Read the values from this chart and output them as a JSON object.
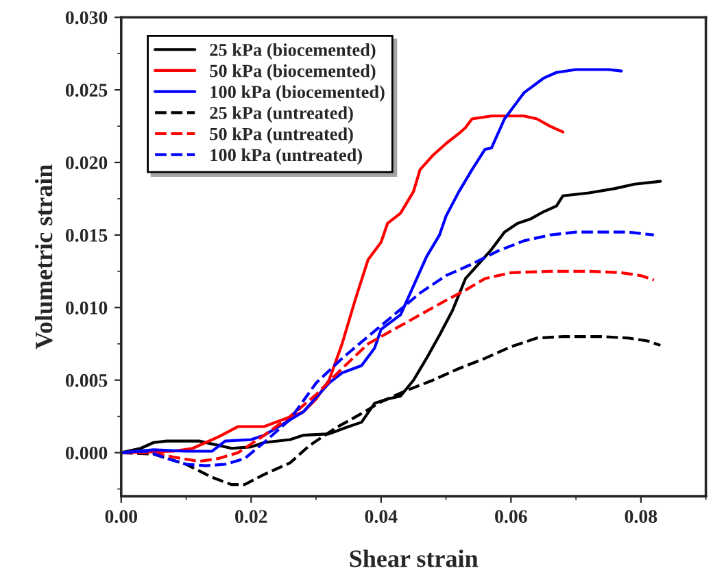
{
  "chart_data": {
    "type": "line",
    "xlabel": "Shear strain",
    "ylabel": "Volumetric strain",
    "xlim": [
      0,
      0.09
    ],
    "ylim": [
      -0.003,
      0.03
    ],
    "xticks": [
      {
        "value": 0,
        "label": "0.00"
      },
      {
        "value": 0.02,
        "label": "0.02"
      },
      {
        "value": 0.04,
        "label": "0.04"
      },
      {
        "value": 0.06,
        "label": "0.06"
      },
      {
        "value": 0.08,
        "label": "0.08"
      }
    ],
    "yticks": [
      {
        "value": 0,
        "label": "0.000"
      },
      {
        "value": 0.005,
        "label": "0.005"
      },
      {
        "value": 0.01,
        "label": "0.010"
      },
      {
        "value": 0.015,
        "label": "0.015"
      },
      {
        "value": 0.02,
        "label": "0.020"
      },
      {
        "value": 0.025,
        "label": "0.025"
      },
      {
        "value": 0.03,
        "label": "0.030"
      }
    ],
    "grid": false,
    "legend": "top left",
    "marker": "none",
    "series": [
      {
        "name": "25 kPa (biocemented)",
        "color": "#000000",
        "line_style": "solid",
        "x": [
          0,
          0.003,
          0.005,
          0.007,
          0.012,
          0.017,
          0.02,
          0.022,
          0.026,
          0.028,
          0.032,
          0.035,
          0.037,
          0.039,
          0.041,
          0.043,
          0.045,
          0.047,
          0.049,
          0.051,
          0.053,
          0.055,
          0.057,
          0.059,
          0.061,
          0.063,
          0.065,
          0.067,
          0.068,
          0.072,
          0.076,
          0.079,
          0.083
        ],
        "values": [
          0,
          0.0003,
          0.0007,
          0.0008,
          0.0008,
          0.0003,
          0.0004,
          0.0007,
          0.0009,
          0.0012,
          0.0013,
          0.0018,
          0.0021,
          0.0034,
          0.0037,
          0.0039,
          0.005,
          0.0065,
          0.0081,
          0.0098,
          0.012,
          0.013,
          0.014,
          0.0152,
          0.0158,
          0.0161,
          0.0166,
          0.017,
          0.0177,
          0.0179,
          0.0182,
          0.0185,
          0.0187
        ]
      },
      {
        "name": "50 kPa (biocemented)",
        "color": "#ff0000",
        "line_style": "solid",
        "x": [
          0,
          0.008,
          0.011,
          0.015,
          0.018,
          0.022,
          0.025,
          0.028,
          0.03,
          0.032,
          0.034,
          0.036,
          0.038,
          0.04,
          0.041,
          0.043,
          0.045,
          0.046,
          0.048,
          0.05,
          0.052,
          0.053,
          0.054,
          0.057,
          0.062,
          0.064,
          0.066,
          0.068
        ],
        "values": [
          0,
          0.0001,
          0.0003,
          0.0011,
          0.0018,
          0.0018,
          0.0023,
          0.0028,
          0.0037,
          0.005,
          0.0075,
          0.0105,
          0.0133,
          0.0145,
          0.0158,
          0.0165,
          0.018,
          0.0195,
          0.0205,
          0.0213,
          0.022,
          0.0224,
          0.023,
          0.0232,
          0.0232,
          0.023,
          0.0225,
          0.0221
        ]
      },
      {
        "name": "100 kPa (biocemented)",
        "color": "#0000ff",
        "line_style": "solid",
        "x": [
          0,
          0.005,
          0.01,
          0.014,
          0.016,
          0.02,
          0.022,
          0.025,
          0.028,
          0.03,
          0.032,
          0.034,
          0.037,
          0.039,
          0.04,
          0.043,
          0.045,
          0.047,
          0.049,
          0.05,
          0.052,
          0.054,
          0.056,
          0.057,
          0.059,
          0.062,
          0.065,
          0.067,
          0.07,
          0.075,
          0.077
        ],
        "values": [
          0,
          0.0002,
          0.0001,
          0.0001,
          0.0008,
          0.0009,
          0.0012,
          0.002,
          0.0028,
          0.0038,
          0.0048,
          0.0055,
          0.006,
          0.0072,
          0.0085,
          0.0095,
          0.0115,
          0.0135,
          0.015,
          0.0163,
          0.018,
          0.0195,
          0.0209,
          0.021,
          0.023,
          0.0248,
          0.0258,
          0.0262,
          0.0264,
          0.0264,
          0.0263
        ]
      },
      {
        "name": "25 kPa (untreated)",
        "color": "#000000",
        "line_style": "dashed",
        "x": [
          0,
          0.005,
          0.01,
          0.014,
          0.017,
          0.019,
          0.022,
          0.026,
          0.029,
          0.033,
          0.037,
          0.04,
          0.044,
          0.048,
          0.052,
          0.056,
          0.06,
          0.064,
          0.068,
          0.074,
          0.078,
          0.081,
          0.083
        ],
        "values": [
          0,
          -0.0001,
          -0.0008,
          -0.0017,
          -0.0022,
          -0.0022,
          -0.0015,
          -0.0007,
          0.0005,
          0.0017,
          0.0027,
          0.0035,
          0.0043,
          0.005,
          0.0058,
          0.0065,
          0.0073,
          0.0079,
          0.008,
          0.008,
          0.0079,
          0.0077,
          0.0074
        ]
      },
      {
        "name": "50 kPa (untreated)",
        "color": "#ff0000",
        "line_style": "dashed",
        "x": [
          0,
          0.005,
          0.008,
          0.012,
          0.015,
          0.018,
          0.022,
          0.026,
          0.03,
          0.034,
          0.038,
          0.042,
          0.046,
          0.05,
          0.053,
          0.056,
          0.06,
          0.066,
          0.072,
          0.077,
          0.08,
          0.082
        ],
        "values": [
          0,
          0,
          -0.0003,
          -0.0006,
          -0.0004,
          0,
          0.0012,
          0.0025,
          0.004,
          0.0058,
          0.0075,
          0.0085,
          0.0095,
          0.0105,
          0.0112,
          0.012,
          0.0124,
          0.0125,
          0.0125,
          0.0124,
          0.0122,
          0.0119
        ]
      },
      {
        "name": "100 kPa (untreated)",
        "color": "#0000ff",
        "line_style": "dashed",
        "x": [
          0,
          0.004,
          0.007,
          0.01,
          0.013,
          0.016,
          0.019,
          0.022,
          0.026,
          0.03,
          0.034,
          0.038,
          0.042,
          0.046,
          0.05,
          0.054,
          0.058,
          0.062,
          0.066,
          0.07,
          0.074,
          0.078,
          0.082
        ],
        "values": [
          0,
          0.0001,
          -0.0004,
          -0.0008,
          -0.0009,
          -0.0008,
          -0.0004,
          0.0007,
          0.0023,
          0.0048,
          0.0065,
          0.008,
          0.0095,
          0.011,
          0.0122,
          0.013,
          0.0139,
          0.0146,
          0.015,
          0.0152,
          0.0152,
          0.0152,
          0.015
        ]
      }
    ]
  }
}
